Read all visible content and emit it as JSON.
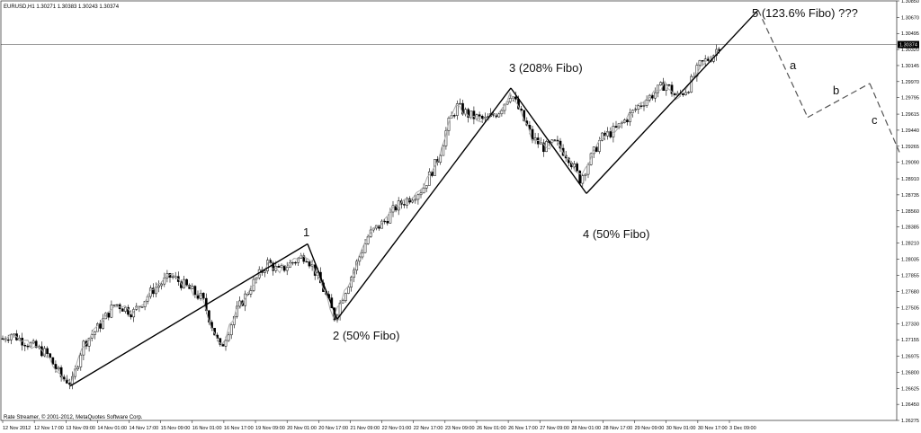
{
  "chart_data": {
    "type": "candlestick",
    "symbol_header": "EURUSD,H1  1.30271 1.30383 1.30243 1.30374",
    "footer": "Rate Streamer, © 2001-2012, MetaQuotes Software Corp.",
    "current_price_label": "1.30374",
    "ylim": [
      1.26275,
      1.3085
    ],
    "y_ticks": [
      "1.30850",
      "1.30670",
      "1.30495",
      "1.30320",
      "1.30145",
      "1.29970",
      "1.29795",
      "1.29615",
      "1.29440",
      "1.29265",
      "1.29090",
      "1.28910",
      "1.28735",
      "1.28560",
      "1.28385",
      "1.28210",
      "1.28035",
      "1.27855",
      "1.27680",
      "1.27505",
      "1.27330",
      "1.27155",
      "1.26975",
      "1.26800",
      "1.26625",
      "1.26450",
      "1.26275"
    ],
    "x_ticks": [
      "12 Nov 2012",
      "12 Nov 17:00",
      "13 Nov 09:00",
      "14 Nov 01:00",
      "14 Nov 17:00",
      "15 Nov 09:00",
      "16 Nov 01:00",
      "16 Nov 17:00",
      "19 Nov 09:00",
      "20 Nov 01:00",
      "20 Nov 17:00",
      "21 Nov 09:00",
      "22 Nov 01:00",
      "22 Nov 17:00",
      "23 Nov 09:00",
      "26 Nov 01:00",
      "26 Nov 17:00",
      "27 Nov 09:00",
      "28 Nov 01:00",
      "28 Nov 17:00",
      "29 Nov 09:00",
      "30 Nov 01:00",
      "30 Nov 17:00",
      "3 Dec 09:00"
    ],
    "price_path": [
      [
        0,
        1.2715
      ],
      [
        12,
        1.2722
      ],
      [
        30,
        1.2712
      ],
      [
        52,
        1.27
      ],
      [
        68,
        1.2675
      ],
      [
        80,
        1.2668
      ],
      [
        92,
        1.271
      ],
      [
        110,
        1.273
      ],
      [
        128,
        1.2755
      ],
      [
        148,
        1.2745
      ],
      [
        170,
        1.277
      ],
      [
        190,
        1.2785
      ],
      [
        205,
        1.2775
      ],
      [
        225,
        1.276
      ],
      [
        245,
        1.2705
      ],
      [
        262,
        1.2745
      ],
      [
        280,
        1.2775
      ],
      [
        298,
        1.28
      ],
      [
        310,
        1.279
      ],
      [
        325,
        1.28
      ],
      [
        340,
        1.2808
      ],
      [
        350,
        1.279
      ],
      [
        362,
        1.2765
      ],
      [
        372,
        1.274
      ],
      [
        382,
        1.2765
      ],
      [
        395,
        1.2795
      ],
      [
        410,
        1.283
      ],
      [
        428,
        1.2845
      ],
      [
        440,
        1.286
      ],
      [
        455,
        1.287
      ],
      [
        470,
        1.288
      ],
      [
        488,
        1.2915
      ],
      [
        498,
        1.295
      ],
      [
        508,
        1.297
      ],
      [
        522,
        1.296
      ],
      [
        540,
        1.2955
      ],
      [
        555,
        1.2965
      ],
      [
        568,
        1.2985
      ],
      [
        580,
        1.296
      ],
      [
        592,
        1.2935
      ],
      [
        605,
        1.2925
      ],
      [
        618,
        1.293
      ],
      [
        632,
        1.2915
      ],
      [
        645,
        1.289
      ],
      [
        655,
        1.291
      ],
      [
        668,
        1.2935
      ],
      [
        685,
        1.2945
      ],
      [
        700,
        1.296
      ],
      [
        715,
        1.2975
      ],
      [
        728,
        1.2985
      ],
      [
        740,
        1.2995
      ],
      [
        752,
        1.298
      ],
      [
        765,
        1.299
      ],
      [
        778,
        1.3015
      ],
      [
        792,
        1.3025
      ],
      [
        800,
        1.3037
      ]
    ],
    "impulse_wave": [
      [
        78,
        1.2665
      ],
      [
        342,
        1.282
      ],
      [
        375,
        1.2738
      ],
      [
        568,
        1.299
      ],
      [
        652,
        1.2875
      ],
      [
        843,
        1.3075
      ]
    ],
    "correction_wave": [
      [
        843,
        1.3075
      ],
      [
        898,
        1.2958
      ],
      [
        967,
        1.2995
      ],
      [
        1000,
        1.292
      ]
    ],
    "labels": {
      "w1": "1",
      "w2": "2 (50% Fibo)",
      "w3": "3 (208% Fibo)",
      "w4": "4 (50% Fibo)",
      "w5": "5 (123.6% Fibo) ???",
      "a": "a",
      "b": "b",
      "c": "c"
    },
    "grid": false,
    "colors": {
      "candles": "#000000",
      "smoothed": "#aaaaaa",
      "waves": "#000000",
      "current_price": "#000000"
    }
  }
}
